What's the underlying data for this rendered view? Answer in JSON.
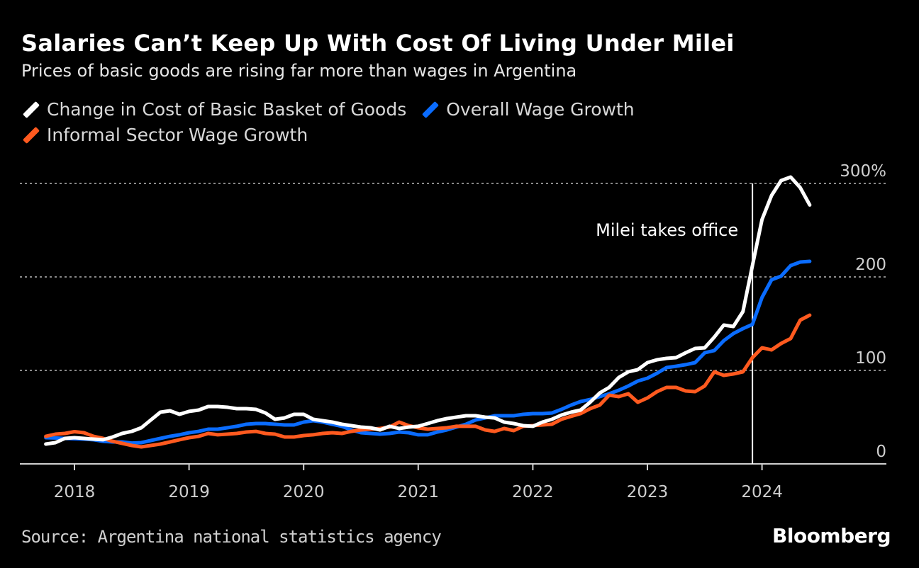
{
  "header": {
    "title": "Salaries Can’t Keep Up With Cost Of Living Under Milei",
    "subtitle": "Prices of basic goods are rising far more than wages in Argentina"
  },
  "footer": {
    "source": "Source: Argentina national statistics agency",
    "logo": "Bloomberg"
  },
  "chart_data": {
    "type": "line",
    "title": "Salaries Can’t Keep Up With Cost Of Living Under Milei",
    "subtitle": "Prices of basic goods are rising far more than wages in Argentina",
    "xlabel": "",
    "ylabel": "",
    "x_start": "2017-10",
    "x_frequency": "monthly",
    "x_ticks": [
      "2018",
      "2019",
      "2020",
      "2021",
      "2022",
      "2023",
      "2024"
    ],
    "xlim": [
      2017.6,
      2025.1
    ],
    "ylim": [
      0,
      300
    ],
    "y_ticks": [
      {
        "value": 300,
        "label": "300%"
      },
      {
        "value": 200,
        "label": "200"
      },
      {
        "value": 100,
        "label": "100"
      },
      {
        "value": 0,
        "label": "0"
      }
    ],
    "grid": "horizontal-dotted",
    "legend_position": "top-left",
    "annotation": {
      "label": "Milei takes office",
      "date": "2023-12"
    },
    "series": [
      {
        "name": "Change in Cost of Basic Basket of Goods",
        "color": "#ffffff",
        "values": [
          21.2,
          22.7,
          27.3,
          28.0,
          27.3,
          26.5,
          25.8,
          28.8,
          32.6,
          34.8,
          38.6,
          47.0,
          55.3,
          56.8,
          53.0,
          56.1,
          57.6,
          61.4,
          61.4,
          60.6,
          59.1,
          59.1,
          58.3,
          54.5,
          47.7,
          49.2,
          53.0,
          53.0,
          47.7,
          46.2,
          44.7,
          42.4,
          40.9,
          39.4,
          38.6,
          36.4,
          40.2,
          37.9,
          39.4,
          40.2,
          43.2,
          46.2,
          48.5,
          50.0,
          51.5,
          51.5,
          50.0,
          49.2,
          44.7,
          43.2,
          40.9,
          40.2,
          44.7,
          47.7,
          52.3,
          55.3,
          57.6,
          65.9,
          75.8,
          81.8,
          92.4,
          98.5,
          100.8,
          108.3,
          111.4,
          112.9,
          113.6,
          118.9,
          123.5,
          124.2,
          135.6,
          148.5,
          147.0,
          162.9,
          212.1,
          261.4,
          287.1,
          303.0,
          306.8,
          295.5,
          277.0
        ]
      },
      {
        "name": "Overall Wage Growth",
        "color": "#0a6cff",
        "values": [
          28.0,
          27.7,
          27.3,
          26.9,
          26.5,
          25.8,
          24.2,
          23.5,
          23.5,
          22.3,
          22.7,
          25.0,
          27.3,
          29.5,
          31.1,
          33.3,
          34.8,
          37.1,
          37.1,
          38.6,
          40.2,
          42.4,
          43.2,
          43.2,
          42.4,
          41.7,
          41.7,
          44.7,
          46.2,
          44.7,
          42.4,
          40.2,
          36.4,
          33.3,
          32.6,
          31.8,
          32.6,
          34.1,
          33.3,
          31.1,
          31.1,
          34.1,
          36.4,
          39.4,
          42.4,
          47.0,
          49.2,
          51.5,
          51.5,
          51.5,
          53.0,
          53.8,
          53.8,
          54.5,
          58.3,
          62.9,
          66.7,
          68.9,
          72.0,
          75.0,
          78.8,
          83.3,
          88.6,
          91.7,
          97.0,
          103.0,
          104.5,
          106.1,
          108.3,
          118.9,
          121.2,
          131.8,
          139.4,
          144.7,
          149.2,
          178.0,
          197.0,
          200.8,
          212.1,
          215.9,
          216.7
        ]
      },
      {
        "name": "Informal Sector Wage Growth",
        "color": "#ff5a1f",
        "values": [
          29.5,
          31.8,
          32.6,
          34.5,
          33.3,
          29.5,
          27.3,
          24.2,
          22.0,
          19.7,
          18.2,
          19.7,
          21.2,
          23.5,
          25.8,
          28.0,
          29.5,
          32.6,
          31.1,
          31.8,
          32.6,
          34.1,
          34.8,
          32.6,
          31.8,
          28.8,
          28.8,
          30.3,
          31.1,
          32.6,
          33.3,
          32.6,
          34.8,
          36.4,
          37.1,
          37.9,
          39.4,
          44.7,
          40.9,
          38.6,
          37.1,
          37.9,
          38.6,
          40.2,
          40.2,
          40.2,
          36.4,
          34.8,
          37.9,
          35.6,
          40.2,
          40.9,
          41.7,
          42.4,
          47.7,
          50.8,
          53.8,
          59.1,
          62.9,
          73.5,
          72.0,
          75.0,
          65.9,
          70.5,
          77.3,
          81.8,
          81.8,
          78.0,
          77.3,
          83.3,
          98.5,
          94.7,
          96.2,
          98.5,
          113.6,
          124.2,
          122.0,
          128.8,
          134.1,
          153.8,
          159.1
        ]
      }
    ]
  }
}
